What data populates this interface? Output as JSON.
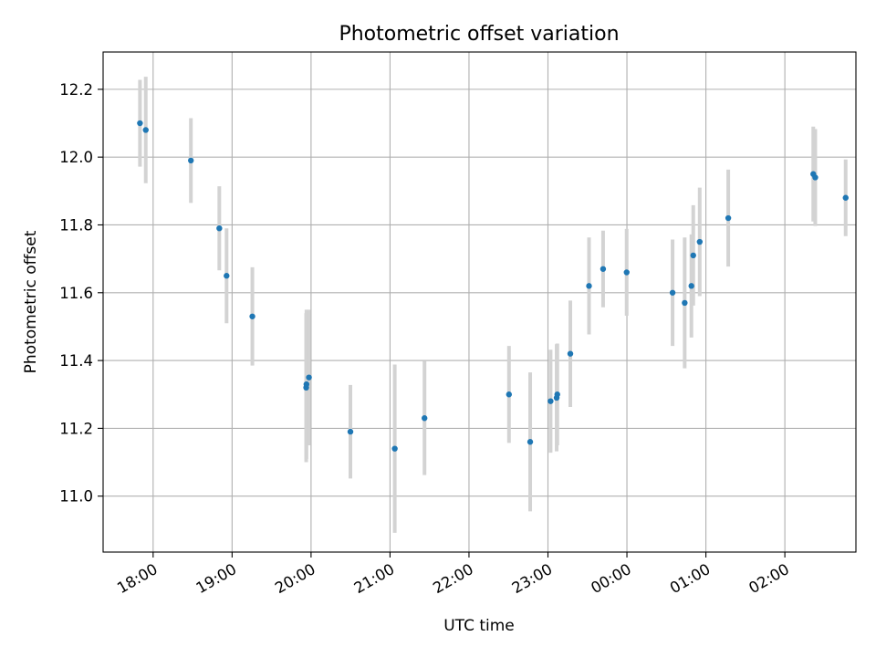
{
  "chart_data": {
    "type": "scatter",
    "title": "Photometric offset variation",
    "xlabel": "UTC time",
    "ylabel": "Photometric offset",
    "x_unit": "minutes since 17:00 UTC",
    "xlim": [
      22,
      594
    ],
    "ylim": [
      10.835,
      12.31
    ],
    "grid": true,
    "colors": {
      "point": "#1f77b4",
      "errorbar": "#d3d3d3"
    },
    "x_ticks": [
      {
        "value": 60,
        "label": "18:00"
      },
      {
        "value": 120,
        "label": "19:00"
      },
      {
        "value": 180,
        "label": "20:00"
      },
      {
        "value": 240,
        "label": "21:00"
      },
      {
        "value": 300,
        "label": "22:00"
      },
      {
        "value": 360,
        "label": "23:00"
      },
      {
        "value": 420,
        "label": "00:00"
      },
      {
        "value": 480,
        "label": "01:00"
      },
      {
        "value": 540,
        "label": "02:00"
      }
    ],
    "y_ticks": [
      {
        "value": 11.0,
        "label": "11.0"
      },
      {
        "value": 11.2,
        "label": "11.2"
      },
      {
        "value": 11.4,
        "label": "11.4"
      },
      {
        "value": 11.6,
        "label": "11.6"
      },
      {
        "value": 11.8,
        "label": "11.8"
      },
      {
        "value": 12.0,
        "label": "12.0"
      },
      {
        "value": 12.2,
        "label": "12.2"
      }
    ],
    "points": [
      {
        "x": 50.0,
        "y": 12.1,
        "err": 0.128
      },
      {
        "x": 54.4,
        "y": 12.08,
        "err": 0.157
      },
      {
        "x": 88.7,
        "y": 11.99,
        "err": 0.125
      },
      {
        "x": 110.3,
        "y": 11.79,
        "err": 0.124
      },
      {
        "x": 115.8,
        "y": 11.65,
        "err": 0.14
      },
      {
        "x": 135.4,
        "y": 11.53,
        "err": 0.145
      },
      {
        "x": 176.3,
        "y": 11.32,
        "err": 0.22
      },
      {
        "x": 176.5,
        "y": 11.33,
        "err": 0.22
      },
      {
        "x": 178.4,
        "y": 11.35,
        "err": 0.2
      },
      {
        "x": 209.9,
        "y": 11.19,
        "err": 0.138
      },
      {
        "x": 243.6,
        "y": 11.14,
        "err": 0.248
      },
      {
        "x": 266.2,
        "y": 11.23,
        "err": 0.168
      },
      {
        "x": 330.4,
        "y": 11.3,
        "err": 0.143
      },
      {
        "x": 346.5,
        "y": 11.16,
        "err": 0.205
      },
      {
        "x": 362.0,
        "y": 11.28,
        "err": 0.152
      },
      {
        "x": 366.6,
        "y": 11.29,
        "err": 0.158
      },
      {
        "x": 367.1,
        "y": 11.3,
        "err": 0.15
      },
      {
        "x": 377.0,
        "y": 11.42,
        "err": 0.157
      },
      {
        "x": 391.2,
        "y": 11.62,
        "err": 0.143
      },
      {
        "x": 401.9,
        "y": 11.67,
        "err": 0.113
      },
      {
        "x": 419.8,
        "y": 11.66,
        "err": 0.128
      },
      {
        "x": 454.7,
        "y": 11.6,
        "err": 0.157
      },
      {
        "x": 463.9,
        "y": 11.57,
        "err": 0.193
      },
      {
        "x": 469.0,
        "y": 11.62,
        "err": 0.152
      },
      {
        "x": 470.4,
        "y": 11.71,
        "err": 0.148
      },
      {
        "x": 475.3,
        "y": 11.75,
        "err": 0.16
      },
      {
        "x": 497.0,
        "y": 11.82,
        "err": 0.143
      },
      {
        "x": 561.6,
        "y": 11.95,
        "err": 0.14
      },
      {
        "x": 563.1,
        "y": 11.94,
        "err": 0.143
      },
      {
        "x": 586.2,
        "y": 11.88,
        "err": 0.113
      }
    ]
  }
}
